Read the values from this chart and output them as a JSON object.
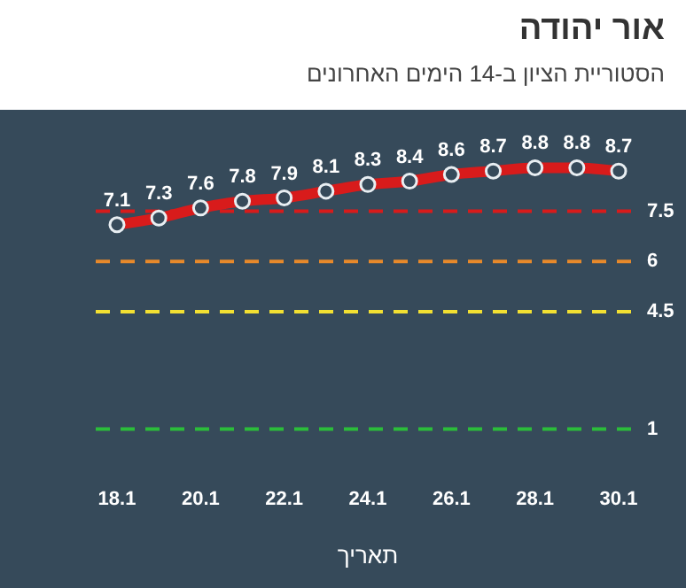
{
  "chart_data": {
    "type": "line",
    "title": "אור יהודה",
    "subtitle": "הסטוריית הציון ב-14 הימים האחרונים",
    "xlabel": "תאריך",
    "categories": [
      "18.1",
      null,
      "20.1",
      null,
      "22.1",
      null,
      "24.1",
      null,
      "26.1",
      null,
      "28.1",
      null,
      "30.1"
    ],
    "series": [
      {
        "color": "#d81b1b",
        "values": [
          7.1,
          7.3,
          7.6,
          7.8,
          7.9,
          8.1,
          8.3,
          8.4,
          8.6,
          8.7,
          8.8,
          8.8,
          8.7
        ]
      }
    ],
    "tick_labels": "x",
    "grid": false,
    "legend": false,
    "marker": "circle",
    "data_labels": true,
    "ref_lines": [
      {
        "axis": "y",
        "value": 7.5,
        "label": "7.5",
        "color": "#d81b1b",
        "line_style": "dashed"
      },
      {
        "axis": "y",
        "value": 6,
        "label": "6",
        "color": "#e8892a",
        "line_style": "dashed"
      },
      {
        "axis": "y",
        "value": 4.5,
        "label": "4.5",
        "color": "#f2e032",
        "line_style": "dashed"
      },
      {
        "axis": "y",
        "value": 1,
        "label": "1",
        "color": "#2bbd3a",
        "line_style": "dashed"
      }
    ]
  }
}
